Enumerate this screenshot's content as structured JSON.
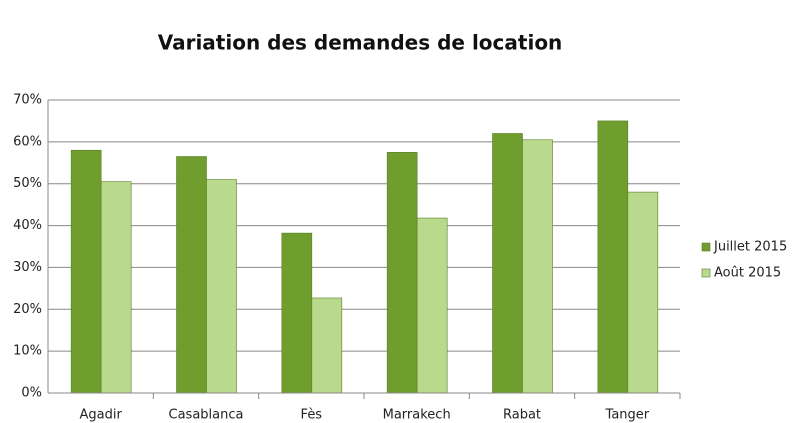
{
  "chart_data": {
    "type": "bar",
    "title": "Variation des demandes de location",
    "categories": [
      "Agadir",
      "Casablanca",
      "Fès",
      "Marrakech",
      "Rabat",
      "Tanger"
    ],
    "series": [
      {
        "name": "Juillet 2015",
        "color": "#6f9e2f",
        "values": [
          58,
          56.5,
          38.2,
          57.5,
          62,
          65
        ]
      },
      {
        "name": "Août 2015",
        "color": "#b9d98c",
        "values": [
          50.5,
          51,
          22.7,
          41.8,
          60.5,
          48
        ]
      }
    ],
    "ylim": [
      0,
      70
    ],
    "yticks": [
      {
        "value": 0,
        "label": "0%"
      },
      {
        "value": 10,
        "label": "10%"
      },
      {
        "value": 20,
        "label": "20%"
      },
      {
        "value": 30,
        "label": "30%"
      },
      {
        "value": 40,
        "label": "40%"
      },
      {
        "value": 50,
        "label": "50%"
      },
      {
        "value": 60,
        "label": "60%"
      },
      {
        "value": 70,
        "label": "70%"
      }
    ],
    "grid": true,
    "legend": "right"
  }
}
